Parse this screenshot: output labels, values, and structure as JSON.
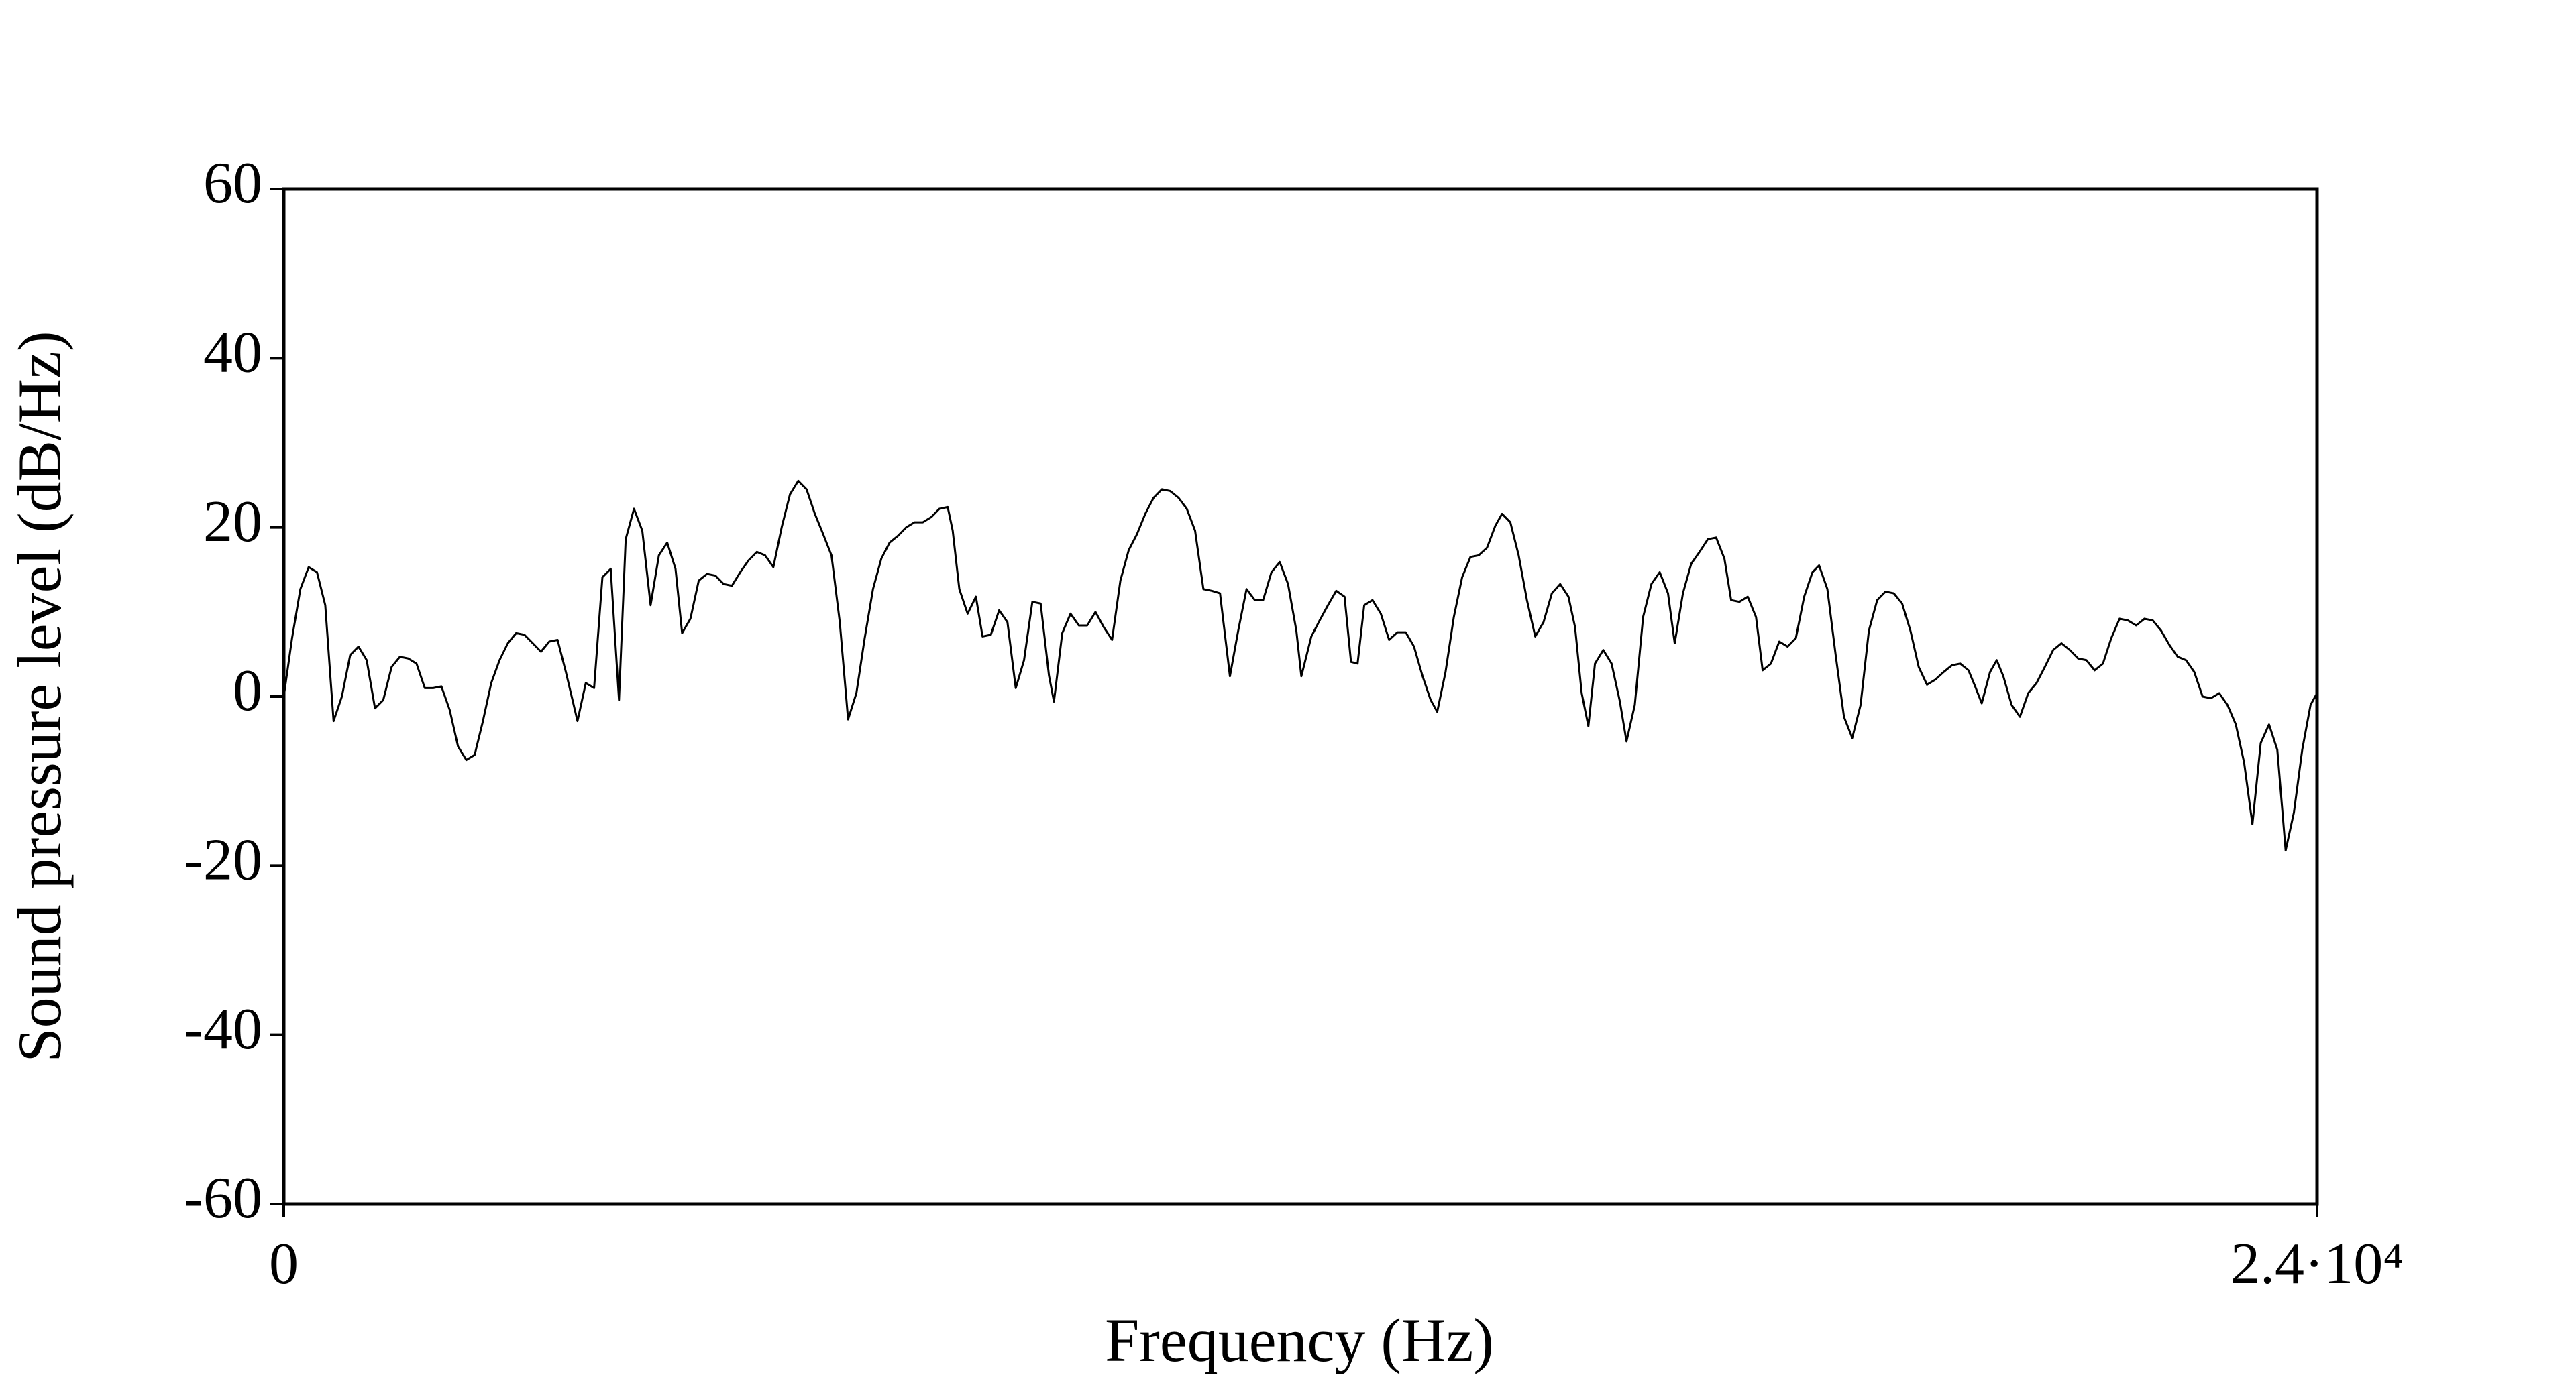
{
  "chart_data": {
    "type": "line",
    "xlabel": "Frequency (Hz)",
    "ylabel": "Sound pressure level (dB/Hz)",
    "xlim": [
      0,
      24000
    ],
    "ylim": [
      -60,
      60
    ],
    "xticks": [
      0,
      {
        "value": 24000,
        "label": "2.4·10⁴"
      }
    ],
    "yticks": [
      -60,
      -40,
      -20,
      0,
      20,
      40,
      60
    ],
    "grid": false,
    "x": [
      0,
      98,
      196,
      294,
      392,
      490,
      588,
      686,
      784,
      882,
      979,
      1077,
      1175,
      1273,
      1371,
      1469,
      1567,
      1665,
      1763,
      1861,
      1959,
      2057,
      2155,
      2253,
      2351,
      2449,
      2547,
      2645,
      2743,
      2841,
      2939,
      3036,
      3134,
      3232,
      3330,
      3467,
      3565,
      3663,
      3761,
      3859,
      3957,
      4036,
      4134,
      4232,
      4330,
      4428,
      4526,
      4624,
      4702,
      4800,
      4898,
      4996,
      5094,
      5192,
      5290,
      5388,
      5486,
      5584,
      5681,
      5779,
      5877,
      5975,
      6073,
      6171,
      6269,
      6367,
      6465,
      6563,
      6661,
      6759,
      6857,
      6955,
      7053,
      7151,
      7249,
      7347,
      7445,
      7543,
      7641,
      7739,
      7837,
      7896,
      7974,
      8072,
      8170,
      8248,
      8346,
      8444,
      8542,
      8640,
      8738,
      8836,
      8934,
      9032,
      9091,
      9189,
      9287,
      9385,
      9483,
      9581,
      9679,
      9777,
      9875,
      9973,
      10071,
      10169,
      10267,
      10365,
      10463,
      10561,
      10659,
      10757,
      10855,
      10953,
      11051,
      11168,
      11266,
      11364,
      11462,
      11560,
      11658,
      11756,
      11854,
      11952,
      12011,
      12129,
      12227,
      12325,
      12423,
      12521,
      12597,
      12675,
      12753,
      12851,
      12949,
      13047,
      13145,
      13243,
      13341,
      13439,
      13537,
      13615,
      13713,
      13811,
      13909,
      14007,
      14105,
      14203,
      14301,
      14380,
      14478,
      14576,
      14674,
      14772,
      14870,
      14968,
      15066,
      15164,
      15242,
      15320,
      15399,
      15477,
      15575,
      15673,
      15771,
      15849,
      15947,
      16045,
      16143,
      16241,
      16339,
      16418,
      16515,
      16613,
      16711,
      16809,
      16907,
      17005,
      17084,
      17182,
      17280,
      17378,
      17456,
      17554,
      17652,
      17750,
      17848,
      17946,
      18044,
      18122,
      18220,
      18318,
      18416,
      18514,
      18612,
      18710,
      18808,
      18906,
      19004,
      19102,
      19200,
      19298,
      19396,
      19494,
      19592,
      19690,
      19788,
      19886,
      19964,
      20042,
      20140,
      20219,
      20297,
      20395,
      20493,
      20591,
      20689,
      20787,
      20885,
      20983,
      21081,
      21179,
      21277,
      21375,
      21473,
      21571,
      21669,
      21767,
      21865,
      21963,
      22061,
      22159,
      22257,
      22355,
      22453,
      22551,
      22649,
      22747,
      22845,
      22943,
      23041,
      23139,
      23237,
      23335,
      23433,
      23531,
      23629,
      23727,
      23825,
      23923,
      24000
    ],
    "series": [
      {
        "color": "#000000",
        "values": [
          0,
          6.9,
          12.7,
          15.3,
          14.7,
          10.8,
          -2.9,
          0,
          4.9,
          5.9,
          4.3,
          -1.4,
          -0.4,
          3.5,
          4.7,
          4.5,
          3.9,
          1.0,
          1.0,
          1.2,
          -1.6,
          -5.9,
          -7.5,
          -6.9,
          -2.9,
          1.6,
          4.3,
          6.3,
          7.5,
          7.3,
          6.3,
          5.3,
          6.5,
          6.7,
          2.9,
          -2.9,
          1.6,
          1.0,
          14.1,
          15.1,
          -0.4,
          18.6,
          22.2,
          19.6,
          10.8,
          16.7,
          18.2,
          15.1,
          7.5,
          9.2,
          13.7,
          14.5,
          14.3,
          13.3,
          13.1,
          14.7,
          16.1,
          17.1,
          16.7,
          15.3,
          20.0,
          23.9,
          25.5,
          24.5,
          21.6,
          19.2,
          16.7,
          8.8,
          -2.7,
          0.4,
          6.9,
          12.7,
          16.3,
          18.2,
          19.0,
          20.0,
          20.6,
          20.6,
          21.2,
          22.2,
          22.4,
          19.6,
          12.7,
          9.8,
          11.8,
          7.1,
          7.3,
          10.2,
          8.8,
          1.0,
          4.3,
          11.2,
          11.0,
          2.5,
          -0.6,
          7.5,
          9.8,
          8.4,
          8.4,
          10.0,
          8.2,
          6.7,
          13.7,
          17.3,
          19.2,
          21.6,
          23.5,
          24.5,
          24.3,
          23.5,
          22.2,
          19.6,
          12.7,
          12.5,
          12.2,
          2.4,
          7.8,
          12.7,
          11.4,
          11.4,
          14.7,
          15.9,
          13.3,
          7.8,
          2.4,
          7.1,
          9.0,
          10.8,
          12.5,
          11.8,
          4.1,
          3.9,
          10.8,
          11.4,
          9.8,
          6.7,
          7.6,
          7.6,
          5.9,
          2.5,
          -0.4,
          -1.8,
          2.9,
          9.4,
          14.1,
          16.5,
          16.7,
          17.6,
          20.2,
          21.6,
          20.6,
          16.7,
          11.4,
          7.1,
          8.8,
          12.2,
          13.3,
          11.8,
          8.2,
          0.4,
          -3.5,
          3.9,
          5.5,
          3.9,
          -0.6,
          -5.3,
          -1.0,
          9.4,
          13.3,
          14.7,
          12.2,
          6.3,
          12.2,
          15.7,
          17.1,
          18.6,
          18.8,
          16.3,
          11.4,
          11.2,
          11.8,
          9.4,
          3.1,
          3.9,
          6.5,
          5.9,
          6.9,
          11.8,
          14.7,
          15.5,
          12.7,
          4.9,
          -2.4,
          -4.9,
          -1.0,
          7.8,
          11.4,
          12.4,
          12.2,
          11.0,
          7.8,
          3.5,
          1.4,
          2.0,
          2.9,
          3.7,
          3.9,
          3.1,
          1.2,
          -0.8,
          2.9,
          4.3,
          2.4,
          -1.0,
          -2.4,
          0.4,
          1.6,
          3.5,
          5.5,
          6.3,
          5.5,
          4.5,
          4.3,
          3.1,
          3.9,
          6.9,
          9.2,
          9.0,
          8.4,
          9.2,
          9.0,
          7.8,
          6.1,
          4.7,
          4.3,
          2.9,
          0,
          -0.2,
          0.4,
          -1.0,
          -3.3,
          -7.8,
          -15.1,
          -5.5,
          -3.3,
          -6.3,
          -18.2,
          -13.7,
          -6.3,
          -1.0,
          0.4
        ]
      }
    ]
  }
}
